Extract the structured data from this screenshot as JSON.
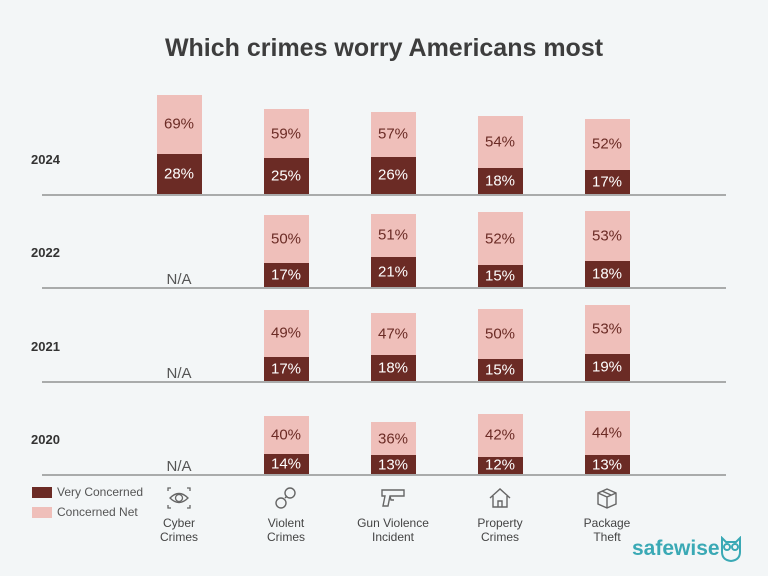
{
  "chart_data": {
    "type": "bar",
    "stacked": true,
    "title": "Which crimes worry Americans most",
    "categories": [
      "Cyber\nCrimes",
      "Violent\nCrimes",
      "Gun Violence\nIncident",
      "Property\nCrimes",
      "Package\nTheft"
    ],
    "category_icons": [
      "eye-icon",
      "handcuffs-icon",
      "gun-icon",
      "house-icon",
      "package-icon"
    ],
    "panels": [
      {
        "year": "2024",
        "very_concerned": [
          28,
          25,
          26,
          18,
          17
        ],
        "concerned_net": [
          69,
          59,
          57,
          54,
          52
        ]
      },
      {
        "year": "2022",
        "very_concerned": [
          null,
          17,
          21,
          15,
          18
        ],
        "concerned_net": [
          null,
          50,
          51,
          52,
          53
        ]
      },
      {
        "year": "2021",
        "very_concerned": [
          null,
          17,
          18,
          15,
          19
        ],
        "concerned_net": [
          null,
          49,
          47,
          50,
          53
        ]
      },
      {
        "year": "2020",
        "very_concerned": [
          null,
          14,
          13,
          12,
          13
        ],
        "concerned_net": [
          null,
          40,
          36,
          42,
          44
        ]
      }
    ],
    "missing_label": "N/A",
    "series": [
      {
        "name": "Very Concerned",
        "color": "#6b2b25"
      },
      {
        "name": "Concerned Net",
        "color": "#efbfba"
      }
    ],
    "legend_position": "bottom-left",
    "value_suffix": "%",
    "grid": false
  },
  "brand": {
    "name": "safewise",
    "color": "#3aa9b5"
  }
}
